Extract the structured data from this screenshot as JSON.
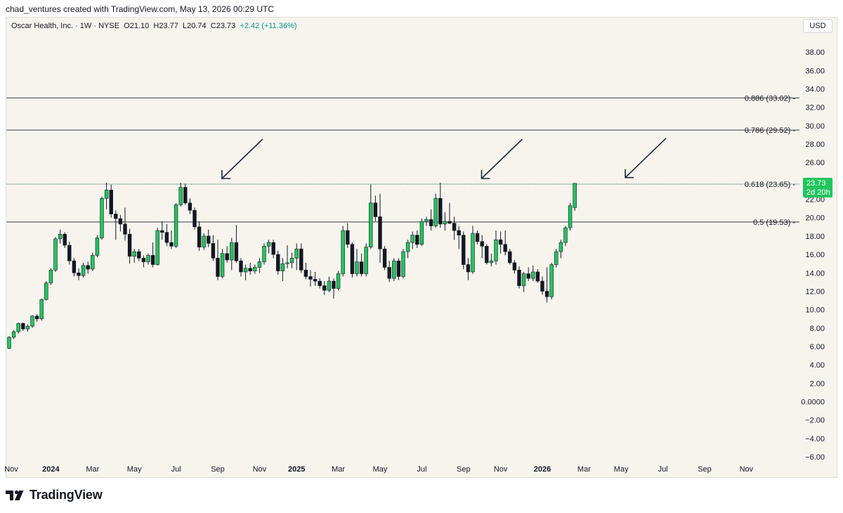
{
  "header": {
    "credit": "chad_ventures created with TradingView.com, May 13, 2026 00:29 UTC"
  },
  "symbol_info": {
    "name": "Oscar Health, Inc. · 1W · NYSE",
    "open": "O21.10",
    "high": "H23.77",
    "low": "L20.74",
    "close": "C23.73",
    "change": "+2.42 (+11.36%)"
  },
  "currency_button": "USD",
  "price_badge": {
    "price": "23.73",
    "countdown": "2d 20h"
  },
  "footer": {
    "brand": "TradingView"
  },
  "colors": {
    "background": "#f7f4ee",
    "up": "#22c55e",
    "down": "#131722",
    "level_line": "#5d606b",
    "current_price_line": "#22c55e",
    "arrow": "#1e2a3a"
  },
  "chart_data": {
    "type": "candlestick",
    "title": "",
    "ylim": [
      -6,
      40
    ],
    "y_ticks": [
      "−6.00",
      "−4.00",
      "−2.00",
      "0.0000",
      "2.00",
      "4.00",
      "6.00",
      "8.00",
      "10.00",
      "12.00",
      "14.00",
      "16.00",
      "18.00",
      "20.00",
      "22.00",
      "24.00",
      "26.00",
      "28.00",
      "30.00",
      "32.00",
      "34.00",
      "36.00",
      "38.00"
    ],
    "x_ticks": [
      {
        "label": "Nov",
        "week": 0,
        "bold": false
      },
      {
        "label": "2024",
        "week": 9,
        "bold": true
      },
      {
        "label": "Mar",
        "week": 18,
        "bold": false
      },
      {
        "label": "May",
        "week": 27,
        "bold": false
      },
      {
        "label": "Jul",
        "week": 36,
        "bold": false
      },
      {
        "label": "Sep",
        "week": 45,
        "bold": false
      },
      {
        "label": "Nov",
        "week": 54,
        "bold": false
      },
      {
        "label": "2025",
        "week": 62,
        "bold": true
      },
      {
        "label": "Mar",
        "week": 71,
        "bold": false
      },
      {
        "label": "May",
        "week": 80,
        "bold": false
      },
      {
        "label": "Jul",
        "week": 89,
        "bold": false
      },
      {
        "label": "Sep",
        "week": 98,
        "bold": false
      },
      {
        "label": "Nov",
        "week": 106,
        "bold": false
      },
      {
        "label": "2026",
        "week": 115,
        "bold": true
      },
      {
        "label": "Mar",
        "week": 124,
        "bold": false
      },
      {
        "label": "May",
        "week": 132,
        "bold": false
      },
      {
        "label": "Jul",
        "week": 141,
        "bold": false
      },
      {
        "label": "Sep",
        "week": 150,
        "bold": false
      },
      {
        "label": "Nov",
        "week": 159,
        "bold": false
      }
    ],
    "fib_levels": [
      {
        "label": "0.886 (33.02)",
        "value": 33.02
      },
      {
        "label": "0.786 (29.52)",
        "value": 29.52
      },
      {
        "label": "0.618 (23.65)",
        "value": 23.65,
        "current": true
      },
      {
        "label": "0.5 (19.53)",
        "value": 19.53
      }
    ],
    "arrows": [
      {
        "week": 46.5,
        "value": 23.8
      },
      {
        "week": 102.5,
        "value": 23.8
      },
      {
        "week": 133.5,
        "value": 23.9
      }
    ],
    "candles": [
      [
        5.8,
        7.1,
        5.7,
        7.0
      ],
      [
        7.0,
        7.8,
        6.8,
        7.6
      ],
      [
        7.6,
        8.6,
        7.4,
        8.5
      ],
      [
        8.5,
        8.6,
        7.7,
        7.9
      ],
      [
        7.9,
        8.4,
        7.6,
        8.2
      ],
      [
        8.2,
        9.4,
        8.0,
        9.3
      ],
      [
        9.3,
        9.5,
        8.7,
        9.0
      ],
      [
        9.0,
        11.2,
        8.8,
        11.1
      ],
      [
        11.1,
        13.1,
        11.0,
        12.9
      ],
      [
        12.9,
        14.5,
        12.7,
        14.3
      ],
      [
        14.3,
        17.9,
        14.1,
        17.7
      ],
      [
        17.7,
        18.7,
        17.2,
        18.2
      ],
      [
        18.2,
        18.4,
        16.7,
        17.0
      ],
      [
        17.0,
        17.4,
        14.9,
        15.3
      ],
      [
        15.3,
        15.6,
        13.6,
        14.0
      ],
      [
        14.0,
        14.5,
        13.2,
        13.7
      ],
      [
        13.7,
        15.1,
        13.5,
        14.8
      ],
      [
        14.8,
        15.2,
        13.9,
        14.4
      ],
      [
        14.4,
        16.2,
        14.2,
        15.9
      ],
      [
        15.9,
        18.1,
        15.7,
        17.8
      ],
      [
        17.8,
        22.3,
        17.6,
        22.1
      ],
      [
        22.1,
        23.8,
        20.9,
        23.0
      ],
      [
        23.0,
        23.6,
        20.0,
        20.4
      ],
      [
        20.4,
        20.8,
        17.6,
        19.9
      ],
      [
        19.9,
        20.3,
        18.5,
        19.3
      ],
      [
        19.3,
        21.1,
        17.5,
        18.2
      ],
      [
        18.2,
        18.8,
        15.0,
        15.8
      ],
      [
        15.8,
        16.6,
        15.1,
        16.3
      ],
      [
        16.3,
        16.6,
        15.3,
        15.6
      ],
      [
        15.6,
        15.9,
        14.6,
        15.2
      ],
      [
        15.2,
        16.1,
        14.9,
        15.9
      ],
      [
        15.9,
        17.3,
        14.6,
        14.9
      ],
      [
        14.9,
        18.9,
        14.8,
        18.6
      ],
      [
        18.6,
        19.6,
        17.6,
        18.4
      ],
      [
        18.4,
        19.3,
        16.9,
        17.3
      ],
      [
        17.3,
        18.6,
        16.6,
        16.9
      ],
      [
        16.9,
        21.6,
        16.7,
        21.4
      ],
      [
        21.4,
        23.8,
        21.2,
        23.3
      ],
      [
        23.3,
        23.7,
        21.4,
        21.6
      ],
      [
        21.6,
        22.1,
        20.4,
        20.8
      ],
      [
        20.8,
        21.1,
        18.7,
        19.0
      ],
      [
        19.0,
        19.6,
        16.4,
        16.8
      ],
      [
        16.8,
        18.3,
        16.5,
        18.0
      ],
      [
        18.0,
        18.7,
        16.8,
        17.2
      ],
      [
        17.2,
        18.1,
        15.3,
        15.6
      ],
      [
        15.6,
        17.6,
        13.2,
        13.6
      ],
      [
        13.6,
        16.6,
        13.4,
        16.1
      ],
      [
        16.1,
        16.9,
        15.1,
        15.4
      ],
      [
        15.4,
        17.8,
        14.3,
        17.3
      ],
      [
        17.3,
        19.2,
        15.1,
        15.3
      ],
      [
        15.3,
        15.6,
        13.6,
        14.1
      ],
      [
        14.1,
        14.9,
        13.2,
        14.5
      ],
      [
        14.5,
        15.1,
        13.8,
        14.2
      ],
      [
        14.2,
        14.9,
        13.9,
        14.6
      ],
      [
        14.6,
        15.6,
        14.0,
        15.2
      ],
      [
        15.2,
        17.2,
        14.9,
        16.9
      ],
      [
        16.9,
        17.6,
        16.1,
        17.3
      ],
      [
        17.3,
        17.6,
        15.6,
        16.0
      ],
      [
        16.0,
        16.4,
        13.8,
        14.2
      ],
      [
        14.2,
        15.6,
        13.1,
        15.0
      ],
      [
        15.0,
        17.0,
        14.5,
        15.1
      ],
      [
        15.1,
        16.2,
        14.5,
        15.6
      ],
      [
        15.6,
        17.2,
        14.3,
        16.6
      ],
      [
        16.6,
        17.2,
        14.0,
        14.3
      ],
      [
        14.3,
        15.1,
        13.3,
        13.6
      ],
      [
        13.6,
        14.3,
        12.5,
        13.3
      ],
      [
        13.3,
        14.1,
        12.6,
        13.1
      ],
      [
        13.1,
        13.4,
        12.3,
        12.6
      ],
      [
        12.6,
        13.1,
        11.6,
        12.1
      ],
      [
        12.1,
        13.6,
        11.9,
        13.1
      ],
      [
        13.1,
        13.4,
        11.2,
        12.3
      ],
      [
        12.3,
        14.2,
        12.1,
        13.9
      ],
      [
        13.9,
        19.1,
        13.6,
        18.6
      ],
      [
        18.6,
        19.4,
        16.7,
        17.1
      ],
      [
        17.1,
        17.3,
        13.5,
        13.9
      ],
      [
        13.9,
        16.6,
        13.6,
        15.2
      ],
      [
        15.2,
        16.1,
        13.6,
        13.9
      ],
      [
        13.9,
        17.2,
        13.6,
        16.8
      ],
      [
        16.8,
        23.6,
        16.6,
        21.6
      ],
      [
        21.6,
        22.4,
        19.6,
        20.1
      ],
      [
        20.1,
        22.6,
        15.1,
        16.6
      ],
      [
        16.6,
        16.9,
        14.3,
        14.6
      ],
      [
        14.6,
        15.3,
        13.0,
        13.4
      ],
      [
        13.4,
        15.6,
        13.1,
        15.3
      ],
      [
        15.3,
        15.6,
        13.2,
        13.6
      ],
      [
        13.6,
        16.6,
        13.4,
        16.3
      ],
      [
        16.3,
        17.6,
        15.6,
        17.3
      ],
      [
        17.3,
        18.5,
        16.6,
        18.1
      ],
      [
        18.1,
        18.6,
        16.7,
        17.1
      ],
      [
        17.1,
        19.9,
        16.9,
        19.6
      ],
      [
        19.6,
        20.1,
        19.1,
        19.8
      ],
      [
        19.8,
        20.9,
        18.6,
        19.1
      ],
      [
        19.1,
        22.6,
        18.9,
        22.1
      ],
      [
        22.1,
        23.8,
        18.9,
        19.3
      ],
      [
        19.3,
        20.6,
        18.6,
        19.6
      ],
      [
        19.6,
        21.6,
        19.3,
        19.4
      ],
      [
        19.4,
        20.1,
        17.6,
        18.6
      ],
      [
        18.6,
        19.1,
        16.6,
        18.1
      ],
      [
        18.1,
        18.5,
        14.4,
        14.9
      ],
      [
        14.9,
        15.6,
        13.2,
        14.1
      ],
      [
        14.1,
        19.1,
        13.9,
        18.3
      ],
      [
        18.3,
        18.6,
        17.1,
        17.4
      ],
      [
        17.4,
        18.1,
        15.6,
        16.9
      ],
      [
        16.9,
        17.1,
        14.9,
        15.1
      ],
      [
        15.1,
        16.1,
        14.7,
        15.3
      ],
      [
        15.3,
        18.6,
        14.9,
        17.6
      ],
      [
        17.6,
        18.5,
        16.1,
        17.1
      ],
      [
        17.1,
        18.6,
        15.9,
        16.3
      ],
      [
        16.3,
        16.6,
        14.9,
        15.1
      ],
      [
        15.1,
        15.4,
        13.9,
        14.3
      ],
      [
        14.3,
        14.7,
        12.3,
        12.6
      ],
      [
        12.6,
        14.1,
        11.9,
        13.9
      ],
      [
        13.9,
        14.6,
        13.1,
        13.4
      ],
      [
        13.4,
        14.8,
        13.1,
        14.1
      ],
      [
        14.1,
        14.4,
        12.9,
        13.1
      ],
      [
        13.1,
        13.6,
        11.6,
        12.0
      ],
      [
        12.0,
        14.6,
        10.8,
        11.4
      ],
      [
        11.4,
        15.1,
        11.1,
        14.9
      ],
      [
        14.9,
        16.6,
        14.6,
        16.3
      ],
      [
        16.3,
        17.6,
        15.6,
        17.3
      ],
      [
        17.3,
        19.1,
        16.9,
        18.9
      ],
      [
        18.9,
        21.6,
        18.6,
        21.3
      ],
      [
        21.1,
        23.77,
        20.74,
        23.73
      ]
    ]
  }
}
